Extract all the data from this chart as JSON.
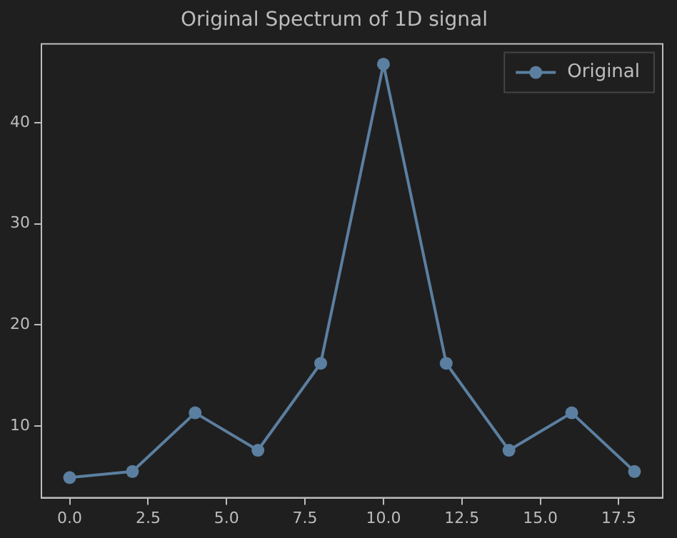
{
  "chart_data": {
    "type": "line",
    "title": "Original Spectrum of 1D signal",
    "x": [
      0,
      2,
      4,
      6,
      8,
      10,
      12,
      14,
      16,
      18
    ],
    "series": [
      {
        "name": "Original",
        "color": "#5b7fa0",
        "values": [
          4.9,
          5.5,
          11.3,
          7.6,
          16.2,
          45.8,
          16.2,
          7.6,
          11.3,
          5.5
        ]
      }
    ],
    "xlim": [
      -0.9,
      18.9
    ],
    "xticks": [
      {
        "value": 0,
        "label": "0.0"
      },
      {
        "value": 2.5,
        "label": "2.5"
      },
      {
        "value": 5,
        "label": "5.0"
      },
      {
        "value": 7.5,
        "label": "7.5"
      },
      {
        "value": 10,
        "label": "10.0"
      },
      {
        "value": 12.5,
        "label": "12.5"
      },
      {
        "value": 15,
        "label": "15.0"
      },
      {
        "value": 17.5,
        "label": "17.5"
      }
    ],
    "ylim": [
      2.9,
      47.8
    ],
    "yticks": [
      10,
      20,
      30,
      40
    ],
    "grid": false,
    "legend": "top right",
    "marker": "circle",
    "line_style": "solid"
  }
}
